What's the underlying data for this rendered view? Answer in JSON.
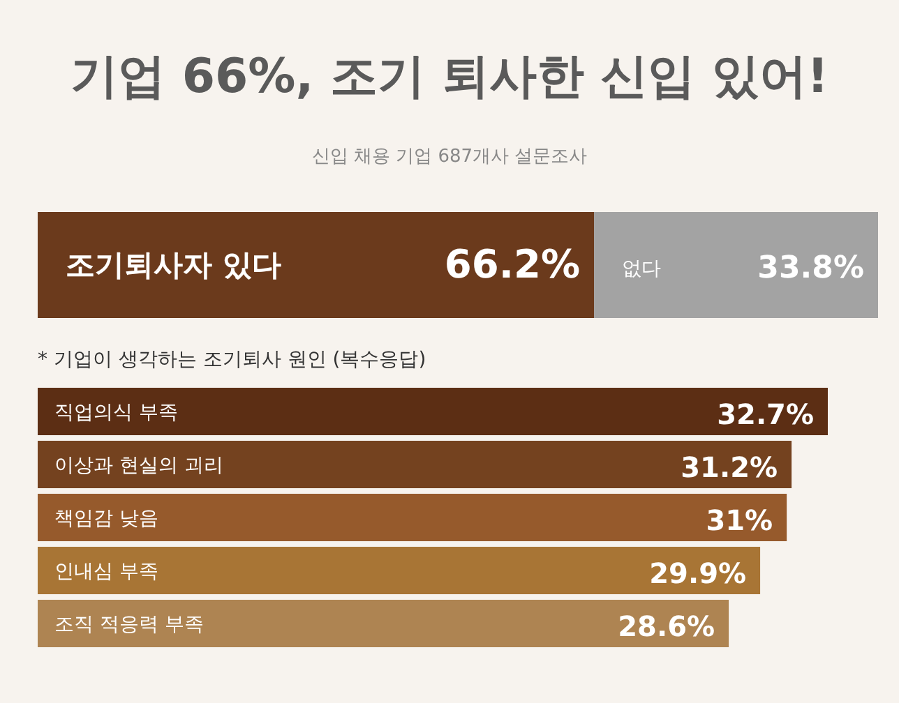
{
  "chart_data": [
    {
      "type": "bar",
      "title": "기업 66%, 조기 퇴사한 신입 있어!",
      "subtitle": "신입 채용 기업 687개사 설문조사",
      "orientation": "horizontal",
      "stacked": true,
      "categories": [
        null
      ],
      "series": [
        {
          "name": "조기퇴사자 있다",
          "color": "#6b3a1c",
          "values": [
            66.2
          ],
          "value_labels": [
            "66.2%"
          ]
        },
        {
          "name": "없다",
          "color": "#a3a3a3",
          "values": [
            33.8
          ],
          "value_labels": [
            "33.8%"
          ]
        }
      ]
    },
    {
      "type": "bar",
      "title": "* 기업이 생각하는 조기퇴사 원인 (복수응답)",
      "orientation": "horizontal",
      "categories": [
        "직업의식 부족",
        "이상과 현실의 괴리",
        "책임감 낮음",
        "인내심 부족",
        "조직 적응력 부족"
      ],
      "values": [
        32.7,
        31.2,
        31,
        29.9,
        28.6
      ],
      "value_labels": [
        "32.7%",
        "31.2%",
        "31%",
        "29.9%",
        "28.6%"
      ],
      "colors": [
        "#5c2e14",
        "#74421f",
        "#965a2c",
        "#a87535",
        "#ae8452"
      ]
    }
  ]
}
